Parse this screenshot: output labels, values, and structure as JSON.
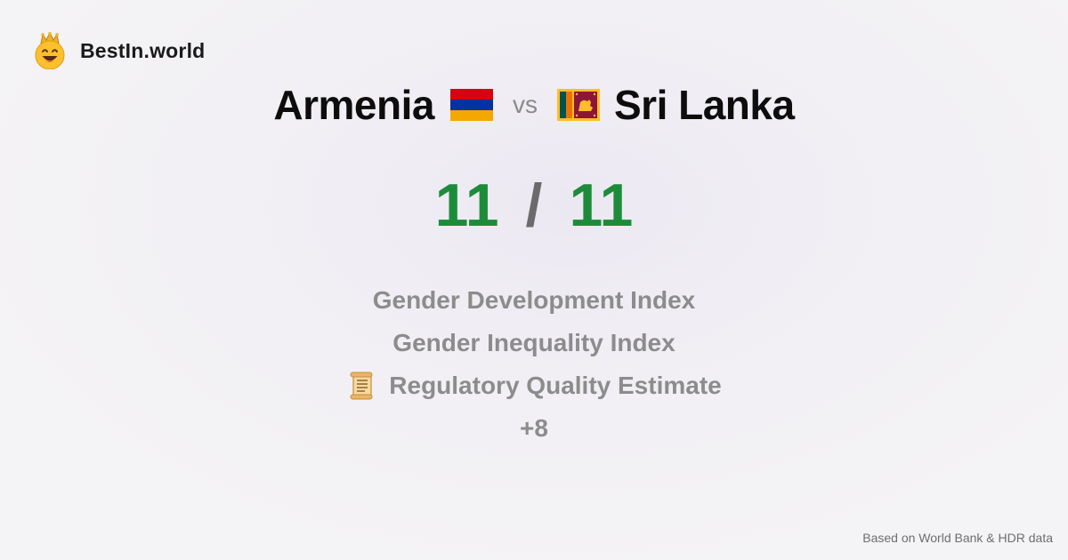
{
  "brand": {
    "name": "BestIn.world",
    "icon": "crown-smiley-icon"
  },
  "comparison": {
    "left": {
      "name": "Armenia",
      "flag_icon": "armenia-flag-icon",
      "score": "11"
    },
    "vs_label": "vs",
    "right": {
      "name": "Sri Lanka",
      "flag_icon": "sri-lanka-flag-icon",
      "score": "11"
    },
    "separator": "/"
  },
  "metrics": [
    {
      "label": "Gender Development Index"
    },
    {
      "label": "Gender Inequality Index"
    },
    {
      "label": "Regulatory Quality Estimate",
      "icon": "scroll-icon"
    }
  ],
  "more_label": "+8",
  "footer": "Based on World Bank & HDR data",
  "colors": {
    "score": "#1d8c3a",
    "metric_text": "#8c8c8c"
  }
}
